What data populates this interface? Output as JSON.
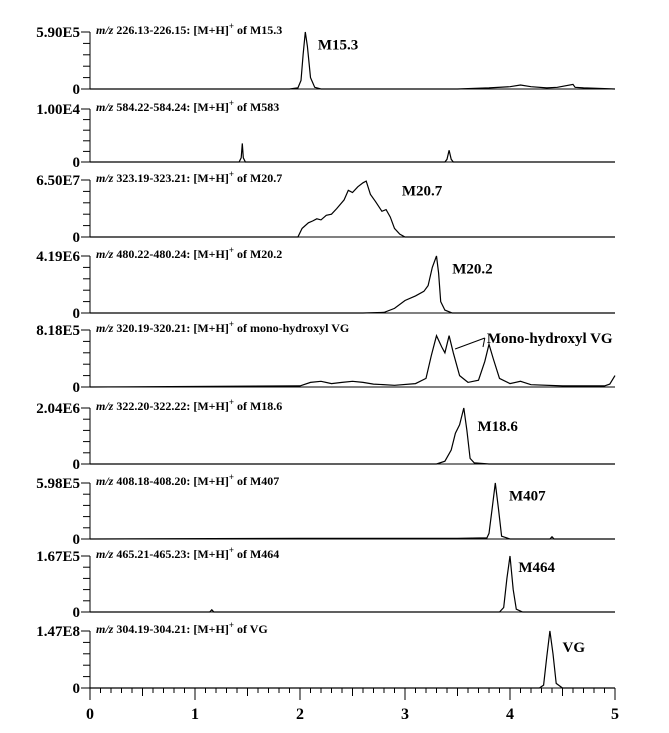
{
  "chart_data": {
    "type": "line",
    "x_axis": {
      "ticks": [
        "0",
        "1",
        "2",
        "3",
        "4",
        "5"
      ],
      "range": [
        0,
        5
      ]
    },
    "panels": [
      {
        "ymax_label": "5.90E5",
        "zero_label": "0",
        "title_prefix": "m/z",
        "title_text": " 226.13-226.15: [M+H]",
        "title_sup": "+",
        "title_suffix": " of M15.3",
        "peak_label": "M15.3",
        "peak_label_x": 2.17,
        "peak_label_y": 0.78,
        "points": [
          [
            0,
            0
          ],
          [
            1.9,
            0
          ],
          [
            1.98,
            0.02
          ],
          [
            2.01,
            0.15
          ],
          [
            2.03,
            0.6
          ],
          [
            2.05,
            1.0
          ],
          [
            2.07,
            0.75
          ],
          [
            2.1,
            0.2
          ],
          [
            2.14,
            0.03
          ],
          [
            2.2,
            0
          ],
          [
            3.5,
            0
          ],
          [
            3.8,
            0.02
          ],
          [
            4.0,
            0.04
          ],
          [
            4.1,
            0.07
          ],
          [
            4.2,
            0.04
          ],
          [
            4.35,
            0.02
          ],
          [
            4.45,
            0.03
          ],
          [
            4.6,
            0.08
          ],
          [
            4.62,
            0.03
          ],
          [
            4.7,
            0.02
          ],
          [
            5,
            0
          ]
        ]
      },
      {
        "ymax_label": "1.00E4",
        "zero_label": "0",
        "title_prefix": "m/z",
        "title_text": " 584.22-584.24: [M+H]",
        "title_sup": "+",
        "title_suffix": " of M583",
        "peak_label": "",
        "peak_label_x": 0,
        "peak_label_y": 0,
        "points": [
          [
            0,
            0
          ],
          [
            1.42,
            0
          ],
          [
            1.44,
            0.08
          ],
          [
            1.45,
            0.35
          ],
          [
            1.46,
            0.08
          ],
          [
            1.48,
            0
          ],
          [
            3.38,
            0
          ],
          [
            3.4,
            0.05
          ],
          [
            3.42,
            0.22
          ],
          [
            3.44,
            0.05
          ],
          [
            3.46,
            0
          ],
          [
            5,
            0
          ]
        ]
      },
      {
        "ymax_label": "6.50E7",
        "zero_label": "0",
        "title_prefix": "m/z",
        "title_text": " 323.19-323.21: [M+H]",
        "title_sup": "+",
        "title_suffix": " of M20.7",
        "peak_label": "M20.7",
        "peak_label_x": 2.97,
        "peak_label_y": 0.82,
        "points": [
          [
            0,
            0
          ],
          [
            1.98,
            0
          ],
          [
            2.02,
            0.15
          ],
          [
            2.08,
            0.25
          ],
          [
            2.12,
            0.28
          ],
          [
            2.16,
            0.32
          ],
          [
            2.2,
            0.3
          ],
          [
            2.25,
            0.38
          ],
          [
            2.3,
            0.4
          ],
          [
            2.35,
            0.5
          ],
          [
            2.42,
            0.65
          ],
          [
            2.46,
            0.82
          ],
          [
            2.5,
            0.78
          ],
          [
            2.55,
            0.88
          ],
          [
            2.6,
            0.95
          ],
          [
            2.63,
            0.98
          ],
          [
            2.67,
            0.75
          ],
          [
            2.72,
            0.62
          ],
          [
            2.78,
            0.45
          ],
          [
            2.82,
            0.48
          ],
          [
            2.86,
            0.35
          ],
          [
            2.9,
            0.15
          ],
          [
            2.95,
            0.05
          ],
          [
            3.0,
            0
          ],
          [
            5,
            0
          ]
        ]
      },
      {
        "ymax_label": "4.19E6",
        "zero_label": "0",
        "title_prefix": "m/z",
        "title_text": " 480.22-480.24: [M+H]",
        "title_sup": "+",
        "title_suffix": " of M20.2",
        "peak_label": "M20.2",
        "peak_label_x": 3.45,
        "peak_label_y": 0.78,
        "points": [
          [
            0,
            0
          ],
          [
            2.6,
            0
          ],
          [
            2.8,
            0.01
          ],
          [
            2.9,
            0.08
          ],
          [
            3.0,
            0.22
          ],
          [
            3.1,
            0.3
          ],
          [
            3.18,
            0.38
          ],
          [
            3.22,
            0.48
          ],
          [
            3.26,
            0.8
          ],
          [
            3.3,
            1.0
          ],
          [
            3.32,
            0.7
          ],
          [
            3.34,
            0.2
          ],
          [
            3.38,
            0.05
          ],
          [
            3.45,
            0
          ],
          [
            5,
            0
          ]
        ]
      },
      {
        "ymax_label": "8.18E5",
        "zero_label": "0",
        "title_prefix": "m/z",
        "title_text": " 320.19-320.21: [M+H]",
        "title_sup": "+",
        "title_suffix": " of mono-hydroxyl VG",
        "peak_label": "Mono-hydroxyl VG",
        "peak_label_x": 3.78,
        "peak_label_y": 0.86,
        "points": [
          [
            0,
            0
          ],
          [
            2.0,
            0.02
          ],
          [
            2.1,
            0.08
          ],
          [
            2.2,
            0.1
          ],
          [
            2.3,
            0.06
          ],
          [
            2.4,
            0.08
          ],
          [
            2.5,
            0.1
          ],
          [
            2.6,
            0.08
          ],
          [
            2.7,
            0.05
          ],
          [
            2.9,
            0.03
          ],
          [
            3.1,
            0.06
          ],
          [
            3.2,
            0.15
          ],
          [
            3.25,
            0.55
          ],
          [
            3.3,
            0.9
          ],
          [
            3.35,
            0.7
          ],
          [
            3.38,
            0.6
          ],
          [
            3.42,
            0.9
          ],
          [
            3.46,
            0.6
          ],
          [
            3.52,
            0.2
          ],
          [
            3.6,
            0.08
          ],
          [
            3.7,
            0.12
          ],
          [
            3.76,
            0.45
          ],
          [
            3.8,
            0.75
          ],
          [
            3.84,
            0.5
          ],
          [
            3.9,
            0.15
          ],
          [
            4.0,
            0.06
          ],
          [
            4.1,
            0.1
          ],
          [
            4.2,
            0.04
          ],
          [
            4.5,
            0.02
          ],
          [
            4.9,
            0.02
          ],
          [
            4.95,
            0.05
          ],
          [
            5.0,
            0.2
          ]
        ]
      },
      {
        "ymax_label": "2.04E6",
        "zero_label": "0",
        "title_prefix": "m/z",
        "title_text": " 322.20-322.22: [M+H]",
        "title_sup": "+",
        "title_suffix": " of M18.6",
        "peak_label": "M18.6",
        "peak_label_x": 3.69,
        "peak_label_y": 0.68,
        "points": [
          [
            0,
            0
          ],
          [
            3.3,
            0
          ],
          [
            3.38,
            0.05
          ],
          [
            3.44,
            0.25
          ],
          [
            3.48,
            0.55
          ],
          [
            3.52,
            0.7
          ],
          [
            3.56,
            1.0
          ],
          [
            3.59,
            0.6
          ],
          [
            3.62,
            0.1
          ],
          [
            3.66,
            0.02
          ],
          [
            3.8,
            0
          ],
          [
            5,
            0
          ]
        ]
      },
      {
        "ymax_label": "5.98E5",
        "zero_label": "0",
        "title_prefix": "m/z",
        "title_text": " 408.18-408.20: [M+H]",
        "title_sup": "+",
        "title_suffix": " of M407",
        "peak_label": "M407",
        "peak_label_x": 3.99,
        "peak_label_y": 0.78,
        "points": [
          [
            0,
            0
          ],
          [
            2.0,
            0.01
          ],
          [
            2.3,
            0.01
          ],
          [
            3.5,
            0.01
          ],
          [
            3.78,
            0.02
          ],
          [
            3.8,
            0.1
          ],
          [
            3.83,
            0.55
          ],
          [
            3.86,
            1.0
          ],
          [
            3.89,
            0.55
          ],
          [
            3.92,
            0.05
          ],
          [
            4.0,
            0
          ],
          [
            4.38,
            0
          ],
          [
            4.4,
            0.04
          ],
          [
            4.42,
            0
          ],
          [
            5,
            0
          ]
        ]
      },
      {
        "ymax_label": "1.67E5",
        "zero_label": "0",
        "title_prefix": "m/z",
        "title_text": " 465.21-465.23: [M+H]",
        "title_sup": "+",
        "title_suffix": " of M464",
        "peak_label": "M464",
        "peak_label_x": 4.08,
        "peak_label_y": 0.8,
        "points": [
          [
            0,
            0
          ],
          [
            1.14,
            0
          ],
          [
            1.16,
            0.04
          ],
          [
            1.18,
            0
          ],
          [
            3.9,
            0
          ],
          [
            3.94,
            0.08
          ],
          [
            3.97,
            0.6
          ],
          [
            4.0,
            1.0
          ],
          [
            4.03,
            0.4
          ],
          [
            4.06,
            0.05
          ],
          [
            4.12,
            0
          ],
          [
            5,
            0
          ]
        ]
      },
      {
        "ymax_label": "1.47E8",
        "zero_label": "0",
        "title_prefix": "m/z",
        "title_text": " 304.19-304.21: [M+H]",
        "title_sup": "+",
        "title_suffix": " of VG",
        "peak_label": "VG",
        "peak_label_x": 4.5,
        "peak_label_y": 0.72,
        "points": [
          [
            0,
            0
          ],
          [
            4.28,
            0
          ],
          [
            4.32,
            0.05
          ],
          [
            4.35,
            0.55
          ],
          [
            4.38,
            1.0
          ],
          [
            4.41,
            0.6
          ],
          [
            4.44,
            0.08
          ],
          [
            4.5,
            0
          ],
          [
            5,
            0
          ]
        ]
      }
    ]
  }
}
